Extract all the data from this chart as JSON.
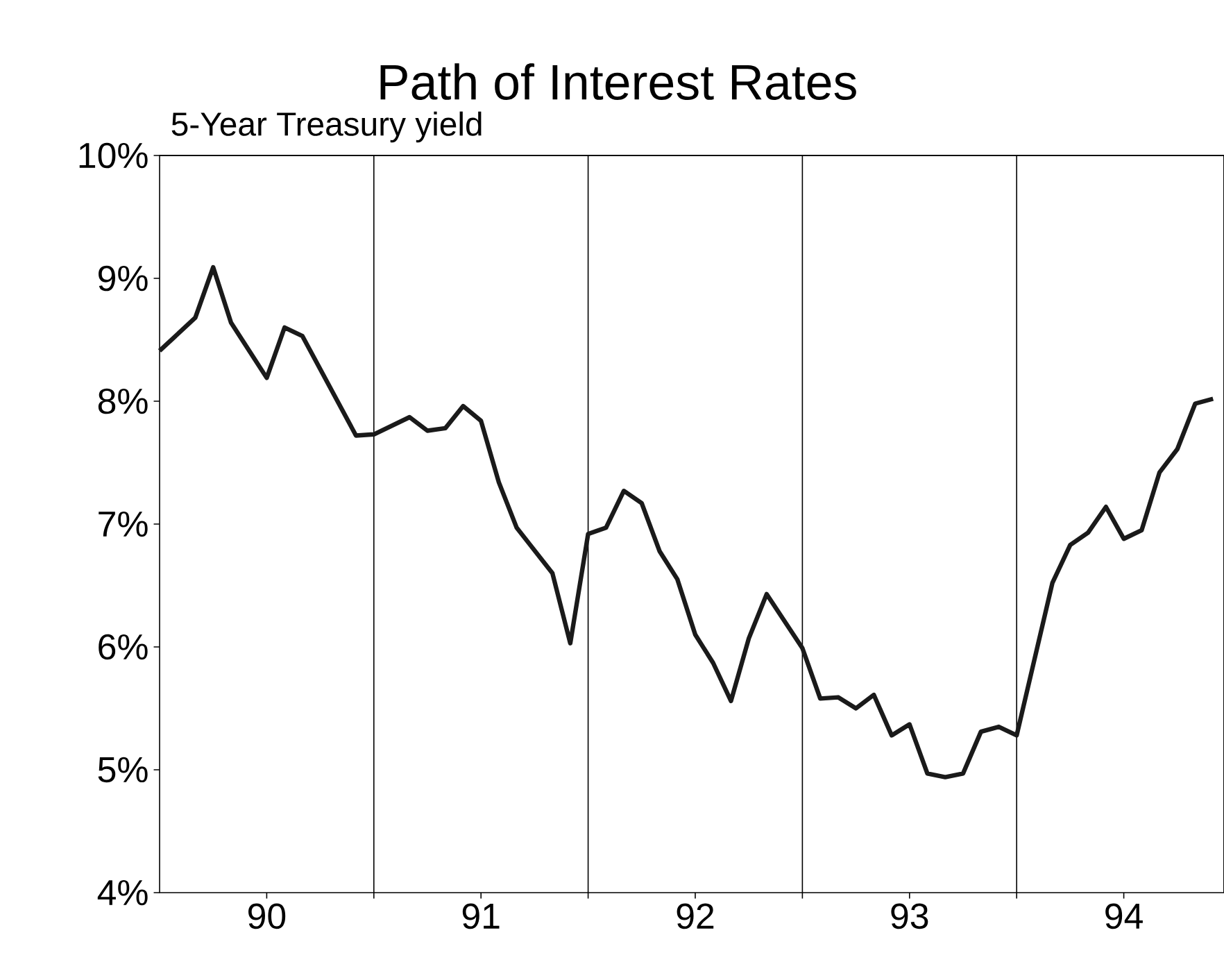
{
  "chart_data": {
    "type": "line",
    "title": "Path of Interest Rates",
    "subtitle": "5-Year Treasury yield",
    "x": [
      "1990-01",
      "1990-03",
      "1990-04",
      "1990-05",
      "1990-07",
      "1990-08",
      "1990-09",
      "1990-12",
      "1991-01",
      "1991-03",
      "1991-04",
      "1991-05",
      "1991-06",
      "1991-07",
      "1991-08",
      "1991-09",
      "1991-11",
      "1991-12",
      "1992-01",
      "1992-02",
      "1992-03",
      "1992-04",
      "1992-05",
      "1992-06",
      "1992-07",
      "1992-08",
      "1992-09",
      "1992-10",
      "1992-11",
      "1993-01",
      "1993-02",
      "1993-03",
      "1993-04",
      "1993-05",
      "1993-06",
      "1993-07",
      "1993-08",
      "1993-09",
      "1993-10",
      "1993-11",
      "1993-12",
      "1994-01",
      "1994-03",
      "1994-04",
      "1994-05",
      "1994-06",
      "1994-07",
      "1994-08",
      "1994-09",
      "1994-10",
      "1994-11",
      "1994-12"
    ],
    "series": [
      {
        "color": "#1a1a1a",
        "values": [
          8.41,
          8.68,
          9.09,
          8.64,
          8.19,
          8.6,
          8.53,
          7.72,
          7.73,
          7.87,
          7.76,
          7.78,
          7.96,
          7.84,
          7.34,
          6.97,
          6.6,
          6.03,
          6.92,
          6.97,
          7.27,
          7.17,
          6.78,
          6.55,
          6.1,
          5.87,
          5.56,
          6.07,
          6.43,
          5.99,
          5.58,
          5.59,
          5.5,
          5.61,
          5.28,
          5.37,
          4.97,
          4.94,
          4.97,
          5.31,
          5.35,
          5.28,
          6.52,
          6.83,
          6.93,
          7.14,
          6.88,
          6.95,
          7.42,
          7.61,
          7.98,
          8.02
        ]
      }
    ],
    "xlim": [
      "1990-01",
      "1994-12-20"
    ],
    "xticks": [
      {
        "value": "1990-07",
        "label": "90"
      },
      {
        "value": "1991",
        "label": null
      },
      {
        "value": "1991-07",
        "label": "91"
      },
      {
        "value": "1992",
        "label": null
      },
      {
        "value": "1992-07",
        "label": "92"
      },
      {
        "value": "1993",
        "label": null
      },
      {
        "value": "1993-07",
        "label": "93"
      },
      {
        "value": "1994",
        "label": null
      },
      {
        "value": "1994-07",
        "label": "94"
      }
    ],
    "ylim": [
      4,
      10
    ],
    "yticks": [
      {
        "value": 4,
        "label": "4%"
      },
      {
        "value": 5,
        "label": "5%"
      },
      {
        "value": 6,
        "label": "6%"
      },
      {
        "value": 7,
        "label": "7%"
      },
      {
        "value": 8,
        "label": "8%"
      },
      {
        "value": 9,
        "label": "9%"
      },
      {
        "value": 10,
        "label": "10%"
      }
    ],
    "ref_lines": [
      {
        "axis": "x",
        "value": "1991",
        "color": "#000000"
      },
      {
        "axis": "x",
        "value": "1992",
        "color": "#000000"
      },
      {
        "axis": "x",
        "value": "1993",
        "color": "#000000"
      },
      {
        "axis": "x",
        "value": "1994",
        "color": "#000000"
      }
    ],
    "grid": false,
    "marker": "none",
    "line_style": "solid"
  }
}
